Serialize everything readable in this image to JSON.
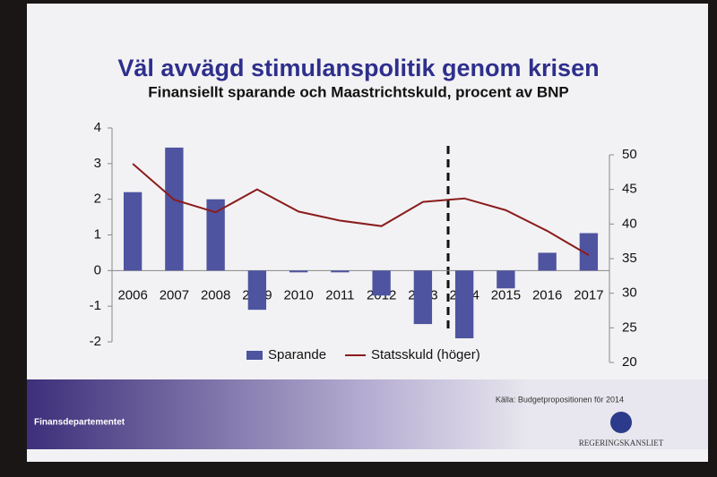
{
  "chart_data": {
    "type": "bar",
    "title": "Väl avvägd stimulanspolitik genom krisen",
    "subtitle": "Finansiellt sparande och Maastrichtskuld, procent av BNP",
    "categories": [
      "2006",
      "2007",
      "2008",
      "2009",
      "2010",
      "2011",
      "2012",
      "2013",
      "2014",
      "2015",
      "2016",
      "2017"
    ],
    "series": [
      {
        "name": "Sparande",
        "type": "bar",
        "color": "#4e54a0",
        "values": [
          2.2,
          3.45,
          2.0,
          -1.1,
          -0.05,
          -0.05,
          -0.7,
          -1.5,
          -1.9,
          -0.5,
          0.5,
          1.05
        ]
      },
      {
        "name": "Statsskuld (höger)",
        "type": "line",
        "axis": "y2",
        "color": "#8b1c1c",
        "values": [
          48.7,
          43.5,
          41.7,
          45.0,
          41.8,
          40.5,
          39.7,
          43.2,
          43.7,
          42.0,
          39.0,
          35.5
        ]
      }
    ],
    "ylim": [
      -2,
      4
    ],
    "yticks": [
      -2,
      -1,
      0,
      1,
      2,
      3,
      4
    ],
    "y2lim": [
      20,
      50
    ],
    "y2ticks": [
      20,
      25,
      30,
      35,
      40,
      45,
      50
    ],
    "legend": "bottom",
    "source": "Källa: Budgetpropositionen för 2014"
  },
  "footer": {
    "department": "Finansdepartementet",
    "logo_text": "REGERINGSKANSLIET"
  }
}
